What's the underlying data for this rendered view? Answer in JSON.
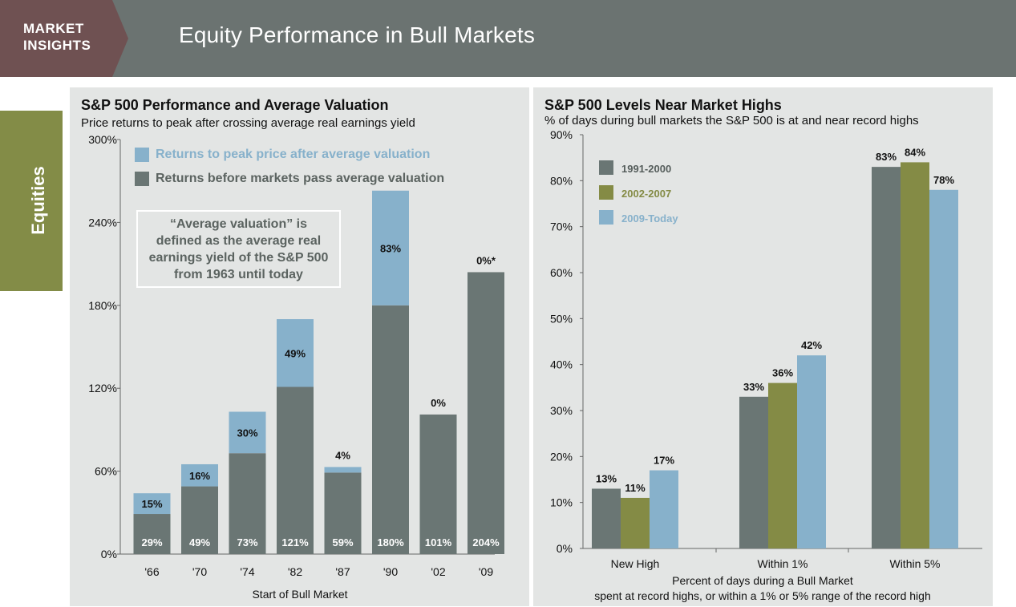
{
  "header": {
    "brand_line1": "MARKET",
    "brand_line2": "INSIGHTS",
    "title": "Equity Performance in Bull Markets"
  },
  "side_tab": {
    "label": "Equities"
  },
  "colors": {
    "header_bg": "#6b7371",
    "brand_bg": "#6f5152",
    "side_tab_bg": "#838c47",
    "panel_bg": "#e3e5e4",
    "gray_bar": "#6a7674",
    "blue_bar": "#87b1cb",
    "olive_bar": "#848b45"
  },
  "left_panel": {
    "title": "S&P 500 Performance and Average Valuation",
    "subtitle": "Price returns to peak after crossing average real earnings yield",
    "legend": {
      "blue": "Returns to peak price after average valuation",
      "gray": "Returns before markets pass average valuation"
    },
    "note": "“Average valuation” is defined as the average real earnings yield of the S&P 500 from 1963 until today"
  },
  "right_panel": {
    "title": "S&P 500 Levels Near Market Highs",
    "subtitle": "% of days during bull markets the S&P 500 is at and near record highs"
  },
  "chart_data": [
    {
      "type": "bar",
      "stacked": true,
      "title": "S&P 500 Performance and Average Valuation",
      "subtitle": "Price returns to peak after crossing average real earnings yield",
      "categories": [
        "'66",
        "'70",
        "'74",
        "'82",
        "'87",
        "'90",
        "'02",
        "'09"
      ],
      "xlabel": "Start of Bull Market",
      "ylabel": "",
      "ylim": [
        0,
        300
      ],
      "yticks": [
        0,
        60,
        120,
        180,
        240,
        300
      ],
      "ytick_labels": [
        "0%",
        "60%",
        "120%",
        "180%",
        "240%",
        "300%"
      ],
      "series": [
        {
          "name": "Returns before markets pass average valuation",
          "color": "#6a7674",
          "values": [
            29,
            49,
            73,
            121,
            59,
            180,
            101,
            204
          ],
          "labels": [
            "29%",
            "49%",
            "73%",
            "121%",
            "59%",
            "180%",
            "101%",
            "204%"
          ]
        },
        {
          "name": "Returns to peak price after average valuation",
          "color": "#87b1cb",
          "values": [
            15,
            16,
            30,
            49,
            4,
            83,
            0,
            0
          ],
          "labels": [
            "15%",
            "16%",
            "30%",
            "49%",
            "4%",
            "83%",
            "0%",
            "0%*"
          ]
        }
      ]
    },
    {
      "type": "bar",
      "stacked": false,
      "title": "S&P 500 Levels Near Market Highs",
      "subtitle": "% of days during bull markets the S&P 500 is at and near record highs",
      "categories": [
        "New High",
        "Within 1%",
        "Within 5%"
      ],
      "xlabel_line1": "Percent of days during a Bull Market",
      "xlabel_line2": "spent at record highs, or within a 1% or 5% range of the record high",
      "ylim": [
        0,
        90
      ],
      "yticks": [
        0,
        10,
        20,
        30,
        40,
        50,
        60,
        70,
        80,
        90
      ],
      "ytick_labels": [
        "0%",
        "10%",
        "20%",
        "30%",
        "40%",
        "50%",
        "60%",
        "70%",
        "80%",
        "90%"
      ],
      "series": [
        {
          "name": "1991-2000",
          "color": "#6a7674",
          "values": [
            13,
            33,
            83
          ],
          "labels": [
            "13%",
            "33%",
            "83%"
          ]
        },
        {
          "name": "2002-2007",
          "color": "#848b45",
          "values": [
            11,
            36,
            84
          ],
          "labels": [
            "11%",
            "36%",
            "84%"
          ]
        },
        {
          "name": "2009-Today",
          "color": "#87b1cb",
          "values": [
            17,
            42,
            78
          ],
          "labels": [
            "17%",
            "42%",
            "78%"
          ]
        }
      ]
    }
  ]
}
